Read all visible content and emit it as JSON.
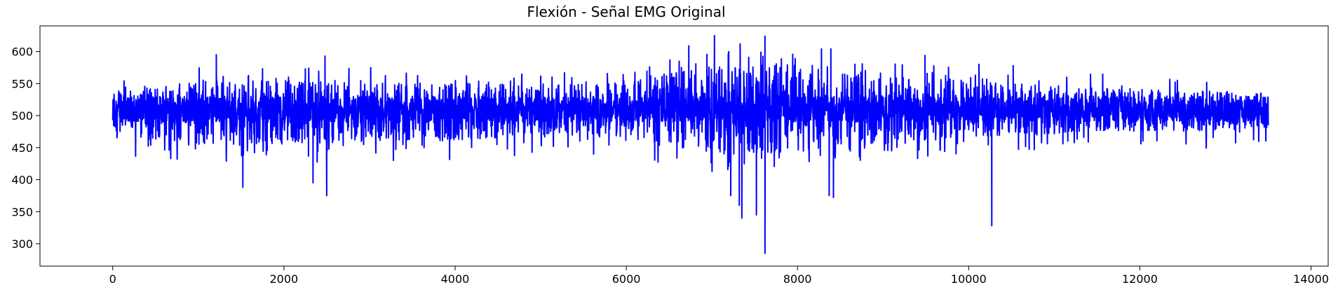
{
  "chart_data": {
    "type": "line",
    "title": "Flexión - Señal EMG Original",
    "xlabel": "",
    "ylabel": "",
    "xlim": [
      -850,
      14200
    ],
    "ylim": [
      265,
      640
    ],
    "x_ticks": [
      0,
      2000,
      4000,
      6000,
      8000,
      10000,
      12000,
      14000
    ],
    "y_ticks": [
      300,
      350,
      400,
      450,
      500,
      550,
      600
    ],
    "grid": false,
    "legend": "none",
    "series": [
      {
        "color": "#0000ff",
        "x_start": 0,
        "x_end": 13500,
        "baseline": 510,
        "envelope": [
          {
            "x": 0,
            "low": 470,
            "high": 545
          },
          {
            "x": 1000,
            "low": 455,
            "high": 555
          },
          {
            "x": 2000,
            "low": 455,
            "high": 555
          },
          {
            "x": 3000,
            "low": 460,
            "high": 555
          },
          {
            "x": 4000,
            "low": 460,
            "high": 555
          },
          {
            "x": 5000,
            "low": 470,
            "high": 545
          },
          {
            "x": 6000,
            "low": 465,
            "high": 555
          },
          {
            "x": 7000,
            "low": 440,
            "high": 580
          },
          {
            "x": 7600,
            "low": 440,
            "high": 580
          },
          {
            "x": 8500,
            "low": 445,
            "high": 570
          },
          {
            "x": 9500,
            "low": 460,
            "high": 560
          },
          {
            "x": 10500,
            "low": 470,
            "high": 550
          },
          {
            "x": 11500,
            "low": 475,
            "high": 545
          },
          {
            "x": 12500,
            "low": 475,
            "high": 540
          },
          {
            "x": 13500,
            "low": 480,
            "high": 535
          }
        ],
        "peaks": [
          {
            "x": 1210,
            "y": 595
          },
          {
            "x": 1750,
            "y": 573
          },
          {
            "x": 2250,
            "y": 573
          },
          {
            "x": 2480,
            "y": 593
          },
          {
            "x": 6510,
            "y": 587
          },
          {
            "x": 6730,
            "y": 609
          },
          {
            "x": 7030,
            "y": 625
          },
          {
            "x": 7330,
            "y": 612
          },
          {
            "x": 7620,
            "y": 624
          },
          {
            "x": 8280,
            "y": 604
          },
          {
            "x": 8390,
            "y": 604
          },
          {
            "x": 9490,
            "y": 594
          },
          {
            "x": 10120,
            "y": 580
          },
          {
            "x": 10520,
            "y": 578
          }
        ],
        "troughs": [
          {
            "x": 1520,
            "y": 388
          },
          {
            "x": 2340,
            "y": 395
          },
          {
            "x": 2500,
            "y": 375
          },
          {
            "x": 7220,
            "y": 375
          },
          {
            "x": 7320,
            "y": 360
          },
          {
            "x": 7350,
            "y": 340
          },
          {
            "x": 7520,
            "y": 345
          },
          {
            "x": 7620,
            "y": 285
          },
          {
            "x": 8370,
            "y": 375
          },
          {
            "x": 8420,
            "y": 372
          },
          {
            "x": 10270,
            "y": 328
          }
        ]
      }
    ]
  }
}
